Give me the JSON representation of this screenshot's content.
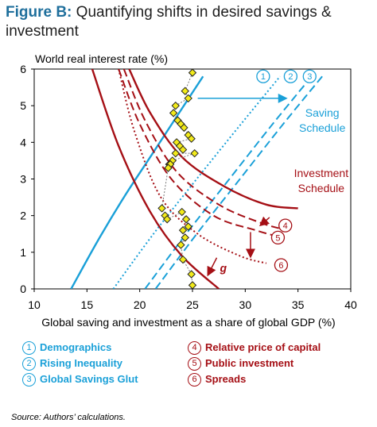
{
  "figure": {
    "title_lead": "Figure B:",
    "title_rest": " Quantifying shifts in desired savings & investment",
    "source": "Source: Authors’ calculations."
  },
  "colors": {
    "saving": "#1aa0d8",
    "investment": "#a50f15",
    "point": "#f2ea1a"
  },
  "legend": {
    "saving": [
      {
        "num": "1",
        "label": "Demographics"
      },
      {
        "num": "2",
        "label": "Rising Inequality"
      },
      {
        "num": "3",
        "label": "Global Savings Glut"
      }
    ],
    "investment": [
      {
        "num": "4",
        "label": "Relative price of capital"
      },
      {
        "num": "5",
        "label": "Public investment"
      },
      {
        "num": "6",
        "label": "Spreads"
      }
    ]
  },
  "chart_data": {
    "type": "line",
    "ylabel": "World real interest rate (%)",
    "xlabel": "Global saving and investment as a share of global GDP (%)",
    "xlim": [
      10,
      40
    ],
    "ylim": [
      0,
      6
    ],
    "xticks": [
      10,
      15,
      20,
      25,
      30,
      35,
      40
    ],
    "yticks": [
      0,
      1,
      2,
      3,
      4,
      5,
      6
    ],
    "annotations": {
      "saving_schedule_label": [
        "Saving",
        "Schedule"
      ],
      "investment_schedule_label": [
        "Investment",
        "Schedule"
      ],
      "g_label": "g",
      "saving_markers": [
        "1",
        "2",
        "3"
      ],
      "investment_markers": [
        "4",
        "5",
        "6"
      ]
    },
    "saving_curves": [
      {
        "style": "solid",
        "x": [
          13.5,
          16,
          18.5,
          21,
          23.5,
          26
        ],
        "y": [
          0,
          1.3,
          2.5,
          3.6,
          4.7,
          5.8
        ]
      },
      {
        "style": "dotted",
        "x": [
          17.5,
          21.3,
          25.4,
          29.6,
          33.3
        ],
        "y": [
          0,
          1.5,
          3.0,
          4.5,
          5.8
        ]
      },
      {
        "style": "dashed",
        "x": [
          20.5,
          24.4,
          28.5,
          32.6,
          36.3
        ],
        "y": [
          0,
          1.5,
          3.0,
          4.5,
          5.8
        ]
      },
      {
        "style": "dashed",
        "x": [
          21.5,
          25.4,
          29.5,
          33.6,
          37.3
        ],
        "y": [
          0,
          1.5,
          3.0,
          4.5,
          5.8
        ]
      }
    ],
    "investment_curves": [
      {
        "style": "solid",
        "x": [
          19.0,
          21.0,
          24.0,
          28.0,
          32.0,
          35.0
        ],
        "y": [
          6.0,
          4.8,
          3.6,
          2.8,
          2.3,
          2.2
        ]
      },
      {
        "style": "solid",
        "x": [
          15.5,
          18.0,
          21.0,
          24.0,
          27.5
        ],
        "y": [
          6.0,
          3.9,
          2.1,
          0.9,
          0
        ]
      },
      {
        "style": "dashed",
        "x": [
          18.5,
          20.5,
          23.5,
          27.5,
          31.5,
          34.0
        ],
        "y": [
          6.0,
          4.6,
          3.2,
          2.3,
          1.8,
          1.6
        ]
      },
      {
        "style": "dashed",
        "x": [
          18.0,
          20.0,
          23.0,
          27.0,
          31.0,
          33.5
        ],
        "y": [
          6.0,
          4.5,
          3.0,
          2.0,
          1.6,
          1.4
        ]
      },
      {
        "style": "dotted",
        "x": [
          18.0,
          19.5,
          22.0,
          25.5,
          29.5,
          32.0
        ],
        "y": [
          6.0,
          4.3,
          2.5,
          1.5,
          0.9,
          0.7
        ]
      }
    ],
    "observations": {
      "x": [
        25.0,
        24.3,
        24.6,
        23.4,
        23.2,
        23.6,
        23.9,
        24.2,
        24.6,
        24.9,
        23.5,
        23.8,
        24.1,
        23.4,
        25.2,
        23.1,
        22.8,
        22.9,
        22.7,
        22.1,
        22.4,
        22.6,
        24.0,
        24.4,
        24.6,
        24.1,
        24.3,
        23.9,
        24.1,
        24.9,
        25.0
      ],
      "y": [
        5.9,
        5.4,
        5.2,
        5.0,
        4.8,
        4.6,
        4.5,
        4.4,
        4.2,
        4.1,
        4.0,
        3.9,
        3.8,
        3.7,
        3.7,
        3.5,
        3.4,
        3.4,
        3.3,
        2.2,
        2.0,
        1.9,
        2.1,
        1.9,
        1.7,
        1.6,
        1.4,
        1.2,
        0.8,
        0.4,
        0.1
      ]
    }
  }
}
